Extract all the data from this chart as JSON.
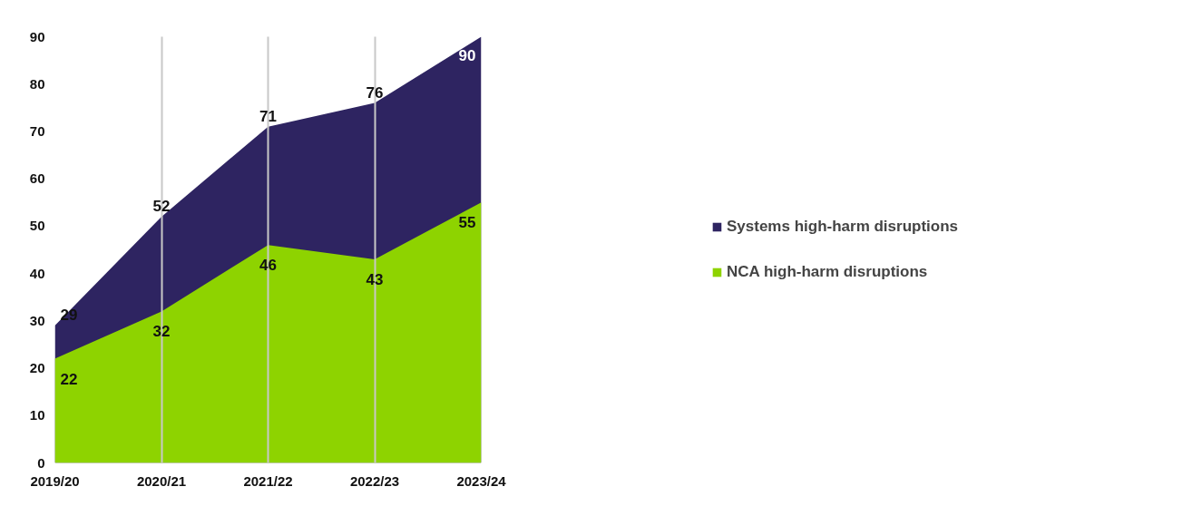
{
  "chart_data": {
    "type": "area",
    "categories": [
      "2019/20",
      "2020/21",
      "2021/22",
      "2022/23",
      "2023/24"
    ],
    "series": [
      {
        "name": "Systems high-harm disruptions",
        "color": "#2e2461",
        "values": [
          29,
          52,
          71,
          76,
          90
        ]
      },
      {
        "name": "NCA high-harm disruptions",
        "color": "#8ed300",
        "values": [
          22,
          32,
          46,
          43,
          55
        ]
      }
    ],
    "ylim": [
      0,
      90
    ],
    "yticks": [
      0,
      10,
      20,
      30,
      40,
      50,
      60,
      70,
      80,
      90
    ],
    "grid": "x",
    "legend": "right",
    "data_labels": true
  }
}
